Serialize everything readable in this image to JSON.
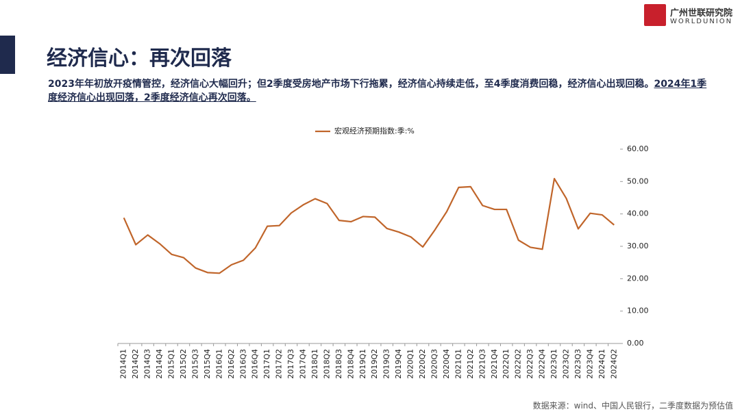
{
  "header": {
    "title": "经济信心：再次回落",
    "subtitle_plain": "2023年年初放开疫情管控，经济信心大幅回升；但2季度受房地产市场下行拖累，经济信心持续走低，至4季度消费回稳，经济信心出现回稳。",
    "subtitle_underlined": "2024年1季度经济信心出现回落，2季度经济信心再次回落。"
  },
  "logo": {
    "name": "广州世联研究院",
    "brand": "WORLDUNION"
  },
  "source": "数据来源：wind、中国人民银行，二季度数据为预估值",
  "chart_data": {
    "type": "line",
    "categories": [
      "2014Q1",
      "2014Q2",
      "2014Q3",
      "2014Q4",
      "2015Q1",
      "2015Q2",
      "2015Q3",
      "2015Q4",
      "2016Q1",
      "2016Q2",
      "2016Q3",
      "2016Q4",
      "2017Q1",
      "2017Q2",
      "2017Q3",
      "2017Q4",
      "2018Q1",
      "2018Q2",
      "2018Q3",
      "2018Q4",
      "2019Q1",
      "2019Q2",
      "2019Q3",
      "2019Q4",
      "2020Q1",
      "2020Q2",
      "2020Q3",
      "2020Q4",
      "2021Q1",
      "2021Q2",
      "2021Q3",
      "2021Q4",
      "2022Q1",
      "2022Q2",
      "2022Q3",
      "2022Q4",
      "2023Q1",
      "2023Q2",
      "2023Q3",
      "2023Q4",
      "2024Q1",
      "2024Q2"
    ],
    "series": [
      {
        "name": "宏观经济预期指数:季:%",
        "color": "#c0652a",
        "values": [
          38.8,
          30.5,
          33.5,
          30.8,
          27.5,
          26.5,
          23.3,
          21.9,
          21.7,
          24.3,
          25.7,
          29.5,
          36.2,
          36.4,
          40.3,
          42.8,
          44.7,
          43.2,
          38.0,
          37.6,
          39.2,
          39.0,
          35.5,
          34.4,
          32.9,
          29.8,
          35.0,
          40.7,
          48.2,
          48.4,
          42.6,
          41.4,
          41.4,
          31.9,
          29.7,
          29.1,
          50.9,
          44.8,
          35.4,
          40.2,
          39.7,
          36.6
        ]
      }
    ],
    "ylim": [
      0,
      60
    ],
    "yticks": [
      {
        "value": 0,
        "label": "0.00"
      },
      {
        "value": 10,
        "label": "10.00"
      },
      {
        "value": 20,
        "label": "20.00"
      },
      {
        "value": 30,
        "label": "30.00"
      },
      {
        "value": 40,
        "label": "40.00"
      },
      {
        "value": 50,
        "label": "50.00"
      },
      {
        "value": 60,
        "label": "60.00"
      }
    ],
    "y_axis_side": "right",
    "legend": "top",
    "grid": false
  }
}
